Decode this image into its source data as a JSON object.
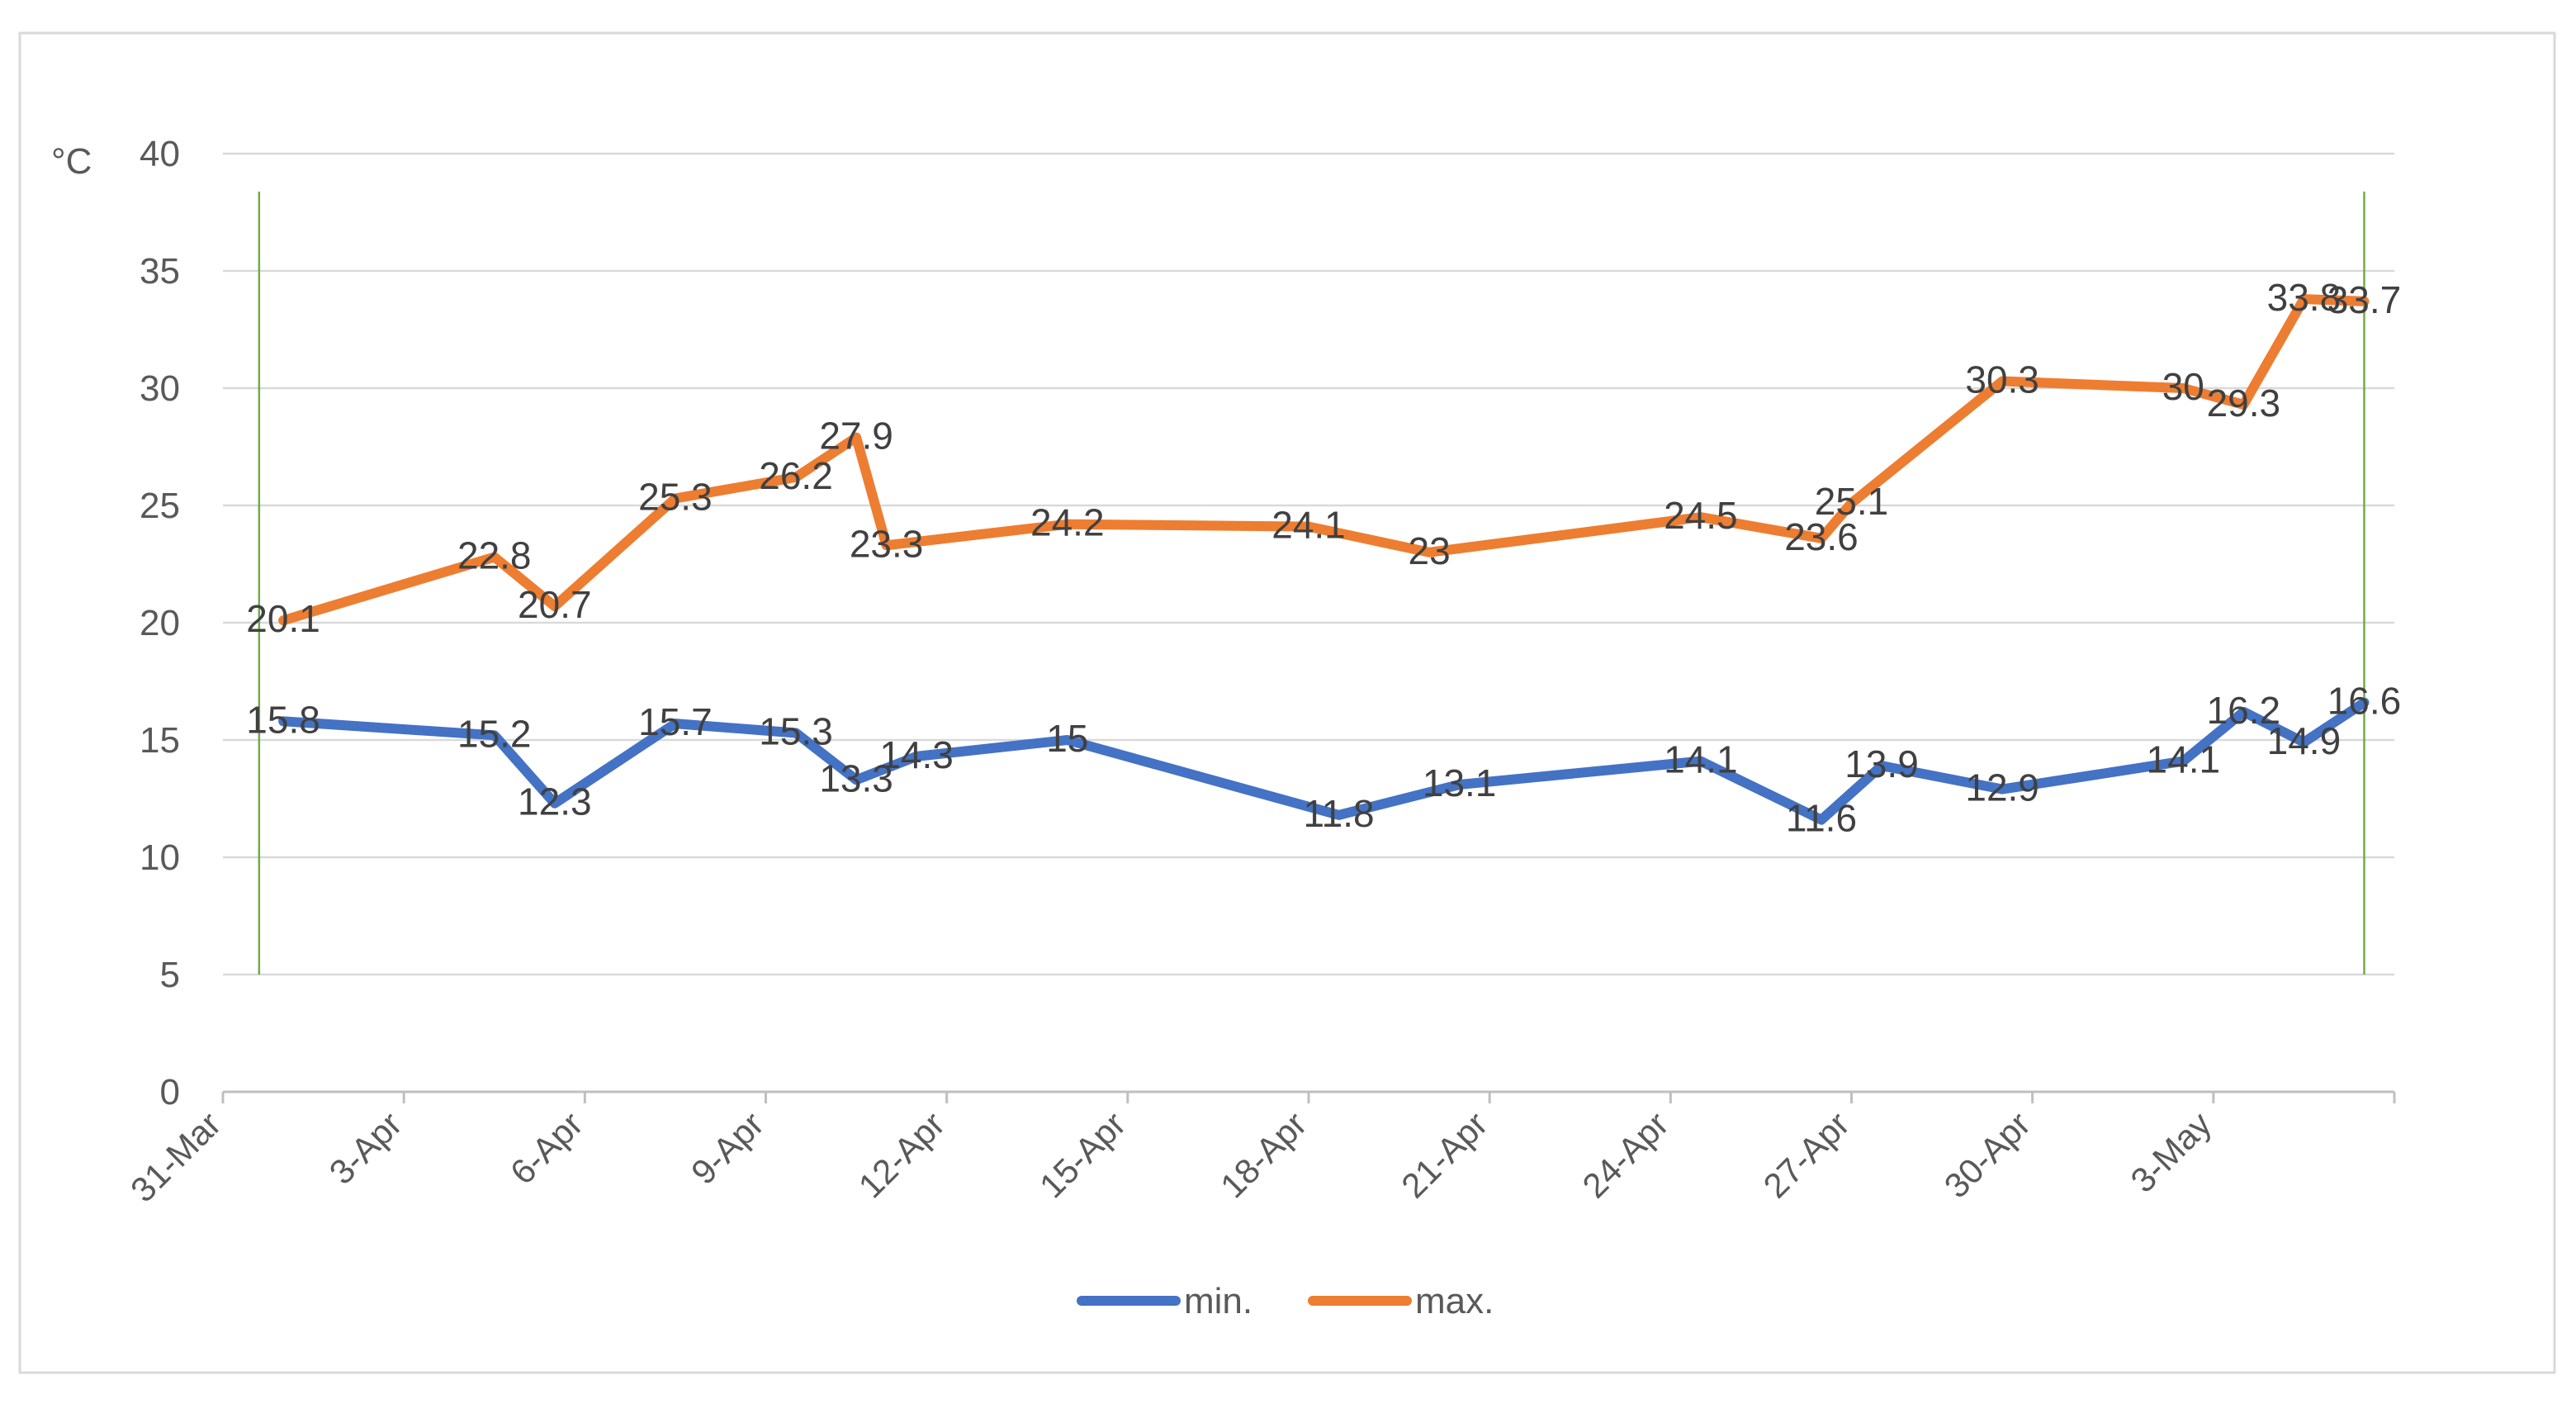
{
  "chart_data": {
    "type": "line",
    "title": "",
    "ylabel": "°C",
    "xlabel": "",
    "ylim": [
      0,
      40
    ],
    "yticks": [
      0,
      5,
      10,
      15,
      20,
      25,
      30,
      35,
      40
    ],
    "x_axis_start_day": 0,
    "x_axis_end_day": 36,
    "x_ticks": [
      {
        "label": "31-Mar",
        "day": 0
      },
      {
        "label": "3-Apr",
        "day": 3
      },
      {
        "label": "6-Apr",
        "day": 6
      },
      {
        "label": "9-Apr",
        "day": 9
      },
      {
        "label": "12-Apr",
        "day": 12
      },
      {
        "label": "15-Apr",
        "day": 15
      },
      {
        "label": "18-Apr",
        "day": 18
      },
      {
        "label": "21-Apr",
        "day": 21
      },
      {
        "label": "24-Apr",
        "day": 24
      },
      {
        "label": "27-Apr",
        "day": 27
      },
      {
        "label": "30-Apr",
        "day": 30
      },
      {
        "label": "3-May",
        "day": 33
      }
    ],
    "markers": [
      {
        "name": "range-start-marker",
        "day": 0.6,
        "color": "#70ad47"
      },
      {
        "name": "range-end-marker",
        "day": 35.5,
        "color": "#70ad47"
      }
    ],
    "series": [
      {
        "name": "min.",
        "color": "#4472c4",
        "points": [
          {
            "day": 1,
            "value": 15.8,
            "label": "15.8"
          },
          {
            "day": 4.5,
            "value": 15.2,
            "label": "15.2"
          },
          {
            "day": 5.5,
            "value": 12.3,
            "label": "12.3"
          },
          {
            "day": 7.5,
            "value": 15.7,
            "label": "15.7"
          },
          {
            "day": 9.5,
            "value": 15.3,
            "label": "15.3"
          },
          {
            "day": 10.5,
            "value": 13.3,
            "label": "13.3"
          },
          {
            "day": 11.5,
            "value": 14.3,
            "label": "14.3"
          },
          {
            "day": 14,
            "value": 15,
            "label": "15"
          },
          {
            "day": 18.5,
            "value": 11.8,
            "label": "11.8"
          },
          {
            "day": 20.5,
            "value": 13.1,
            "label": "13.1"
          },
          {
            "day": 24.5,
            "value": 14.1,
            "label": "14.1"
          },
          {
            "day": 26.5,
            "value": 11.6,
            "label": "11.6"
          },
          {
            "day": 27.5,
            "value": 13.9,
            "label": "13.9"
          },
          {
            "day": 29.5,
            "value": 12.9,
            "label": "12.9"
          },
          {
            "day": 32.5,
            "value": 14.1,
            "label": "14.1"
          },
          {
            "day": 33.5,
            "value": 16.2,
            "label": "16.2"
          },
          {
            "day": 34.5,
            "value": 14.9,
            "label": "14.9"
          },
          {
            "day": 35.5,
            "value": 16.6,
            "label": "16.6"
          }
        ]
      },
      {
        "name": "max.",
        "color": "#ed7d31",
        "points": [
          {
            "day": 1,
            "value": 20.1,
            "label": "20.1"
          },
          {
            "day": 4.5,
            "value": 22.8,
            "label": "22.8"
          },
          {
            "day": 5.5,
            "value": 20.7,
            "label": "20.7"
          },
          {
            "day": 7.5,
            "value": 25.3,
            "label": "25.3"
          },
          {
            "day": 9.5,
            "value": 26.2,
            "label": "26.2"
          },
          {
            "day": 10.5,
            "value": 27.9,
            "label": "27.9"
          },
          {
            "day": 11,
            "value": 23.3,
            "label": "23.3"
          },
          {
            "day": 14,
            "value": 24.2,
            "label": "24.2"
          },
          {
            "day": 18,
            "value": 24.1,
            "label": "24.1"
          },
          {
            "day": 20,
            "value": 23,
            "label": "23"
          },
          {
            "day": 24.5,
            "value": 24.5,
            "label": "24.5"
          },
          {
            "day": 26.5,
            "value": 23.6,
            "label": "23.6"
          },
          {
            "day": 27,
            "value": 25.1,
            "label": "25.1"
          },
          {
            "day": 29.5,
            "value": 30.3,
            "label": "30.3"
          },
          {
            "day": 32.5,
            "value": 30,
            "label": "30"
          },
          {
            "day": 33.5,
            "value": 29.3,
            "label": "29.3"
          },
          {
            "day": 34.5,
            "value": 33.8,
            "label": "33.8"
          },
          {
            "day": 35.5,
            "value": 33.7,
            "label": "33.7"
          }
        ]
      }
    ],
    "legend": {
      "position": "bottom",
      "entries": [
        "min.",
        "max."
      ]
    },
    "grid": true
  }
}
